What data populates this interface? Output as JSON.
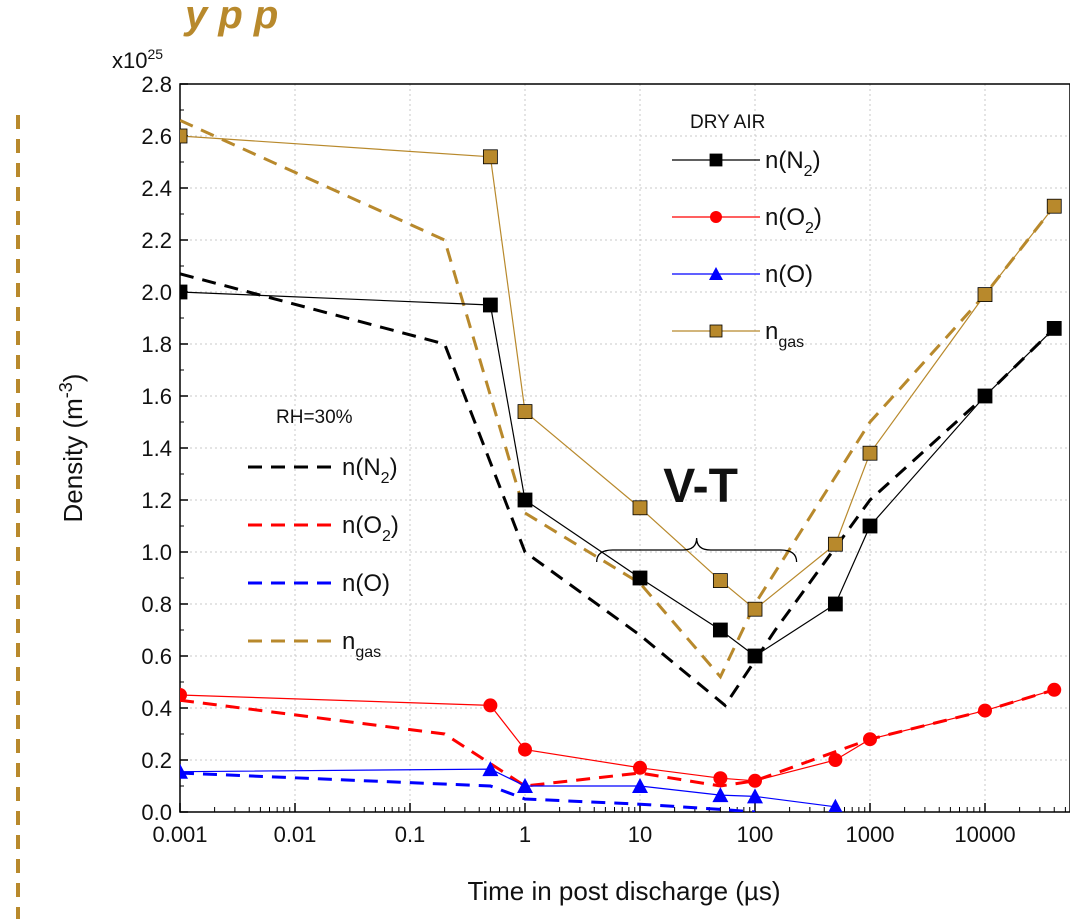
{
  "chart_data": {
    "type": "line",
    "title_fragment": "y  p    p",
    "xlabel": "Time in post discharge (µs)",
    "ylabel_prefix": "Density (m",
    "ylabel_sup": "-3",
    "ylabel_suffix": ")",
    "y_multiplier_base": "x10",
    "y_multiplier_exp": "25",
    "xscale": "log",
    "xlim": [
      0.001,
      40000
    ],
    "ylim": [
      0,
      2.8
    ],
    "grid": true,
    "x_ticks": [
      {
        "value": 0.001,
        "label": "0.001"
      },
      {
        "value": 0.01,
        "label": "0.01"
      },
      {
        "value": 0.1,
        "label": "0.1"
      },
      {
        "value": 1,
        "label": "1"
      },
      {
        "value": 10,
        "label": "10"
      },
      {
        "value": 100,
        "label": "100"
      },
      {
        "value": 1000,
        "label": "1000"
      },
      {
        "value": 10000,
        "label": "10000"
      }
    ],
    "y_ticks": [
      {
        "value": 0.0,
        "label": "0.0"
      },
      {
        "value": 0.2,
        "label": "0.2"
      },
      {
        "value": 0.4,
        "label": "0.4"
      },
      {
        "value": 0.6,
        "label": "0.6"
      },
      {
        "value": 0.8,
        "label": "0.8"
      },
      {
        "value": 1.0,
        "label": "1.0"
      },
      {
        "value": 1.2,
        "label": "1.2"
      },
      {
        "value": 1.4,
        "label": "1.4"
      },
      {
        "value": 1.6,
        "label": "1.6"
      },
      {
        "value": 1.8,
        "label": "1.8"
      },
      {
        "value": 2.0,
        "label": "2.0"
      },
      {
        "value": 2.2,
        "label": "2.2"
      },
      {
        "value": 2.4,
        "label": "2.4"
      },
      {
        "value": 2.6,
        "label": "2.6"
      },
      {
        "value": 2.8,
        "label": "2.8"
      }
    ],
    "series": [
      {
        "key": "dry-n2",
        "group": "dry",
        "color": "#000000",
        "marker": "square",
        "dashed": false,
        "x": [
          0.001,
          0.5,
          1,
          10,
          50,
          100,
          500,
          1000,
          10000,
          40000
        ],
        "y": [
          2.0,
          1.95,
          1.2,
          0.9,
          0.7,
          0.6,
          0.8,
          1.1,
          1.6,
          1.86
        ]
      },
      {
        "key": "dry-o2",
        "group": "dry",
        "color": "#ff0000",
        "marker": "circle",
        "dashed": false,
        "x": [
          0.001,
          0.5,
          1,
          10,
          50,
          100,
          500,
          1000,
          10000,
          40000
        ],
        "y": [
          0.45,
          0.41,
          0.24,
          0.17,
          0.13,
          0.12,
          0.2,
          0.28,
          0.39,
          0.47
        ]
      },
      {
        "key": "dry-o",
        "group": "dry",
        "color": "#0000ff",
        "marker": "triangle",
        "dashed": false,
        "x": [
          0.001,
          0.5,
          1,
          10,
          50,
          100,
          500
        ],
        "y": [
          0.155,
          0.165,
          0.1,
          0.1,
          0.065,
          0.06,
          0.02
        ]
      },
      {
        "key": "dry-ngas",
        "group": "dry",
        "color": "#b8892c",
        "marker": "square",
        "dashed": false,
        "x": [
          0.001,
          0.5,
          1,
          10,
          50,
          100,
          500,
          1000,
          10000,
          40000
        ],
        "y": [
          2.6,
          2.52,
          1.54,
          1.17,
          0.89,
          0.78,
          1.03,
          1.38,
          1.99,
          2.33
        ]
      },
      {
        "key": "rh-n2",
        "group": "rh",
        "color": "#000000",
        "marker": "none",
        "dashed": true,
        "x": [
          0.001,
          0.2,
          1,
          10,
          55,
          150,
          1000,
          10000,
          40000
        ],
        "y": [
          2.07,
          1.8,
          1.0,
          0.68,
          0.41,
          0.7,
          1.2,
          1.6,
          1.86
        ]
      },
      {
        "key": "rh-o2",
        "group": "rh",
        "color": "#ff0000",
        "marker": "none",
        "dashed": true,
        "x": [
          0.001,
          0.2,
          1,
          10,
          50,
          100,
          1000,
          10000,
          40000
        ],
        "y": [
          0.43,
          0.3,
          0.1,
          0.15,
          0.1,
          0.12,
          0.28,
          0.39,
          0.47
        ]
      },
      {
        "key": "rh-o",
        "group": "rh",
        "color": "#0000ff",
        "marker": "none",
        "dashed": true,
        "x": [
          0.001,
          0.5,
          1,
          10,
          50,
          100
        ],
        "y": [
          0.15,
          0.1,
          0.05,
          0.03,
          0.01,
          0.0
        ]
      },
      {
        "key": "rh-ngas",
        "group": "rh",
        "color": "#b8892c",
        "marker": "none",
        "dashed": true,
        "x": [
          0.001,
          0.2,
          1,
          10,
          50,
          100,
          1000,
          10000,
          40000
        ],
        "y": [
          2.66,
          2.2,
          1.15,
          0.88,
          0.52,
          0.8,
          1.5,
          1.99,
          2.33
        ]
      }
    ],
    "legend_dry": {
      "title": "DRY AIR",
      "placement": "top-right",
      "entries": [
        {
          "series": "dry-n2",
          "base": "n(N",
          "sub": "2",
          "tail": ")"
        },
        {
          "series": "dry-o2",
          "base": "n(O",
          "sub": "2",
          "tail": ")"
        },
        {
          "series": "dry-o",
          "base": "n(O)",
          "sub": "",
          "tail": ""
        },
        {
          "series": "dry-ngas",
          "base": "n",
          "sub": "gas",
          "tail": ""
        }
      ]
    },
    "legend_rh": {
      "title": "RH=30%",
      "placement": "left",
      "entries": [
        {
          "series": "rh-n2",
          "base": "n(N",
          "sub": "2",
          "tail": ")"
        },
        {
          "series": "rh-o2",
          "base": "n(O",
          "sub": "2",
          "tail": ")"
        },
        {
          "series": "rh-o",
          "base": "n(O)",
          "sub": "",
          "tail": ""
        },
        {
          "series": "rh-ngas",
          "base": "n",
          "sub": "gas",
          "tail": ""
        }
      ]
    },
    "annotation": {
      "text": "V-T",
      "brace_x_start": 4.2,
      "brace_x_end": 230,
      "brace_y": 1.0
    }
  }
}
